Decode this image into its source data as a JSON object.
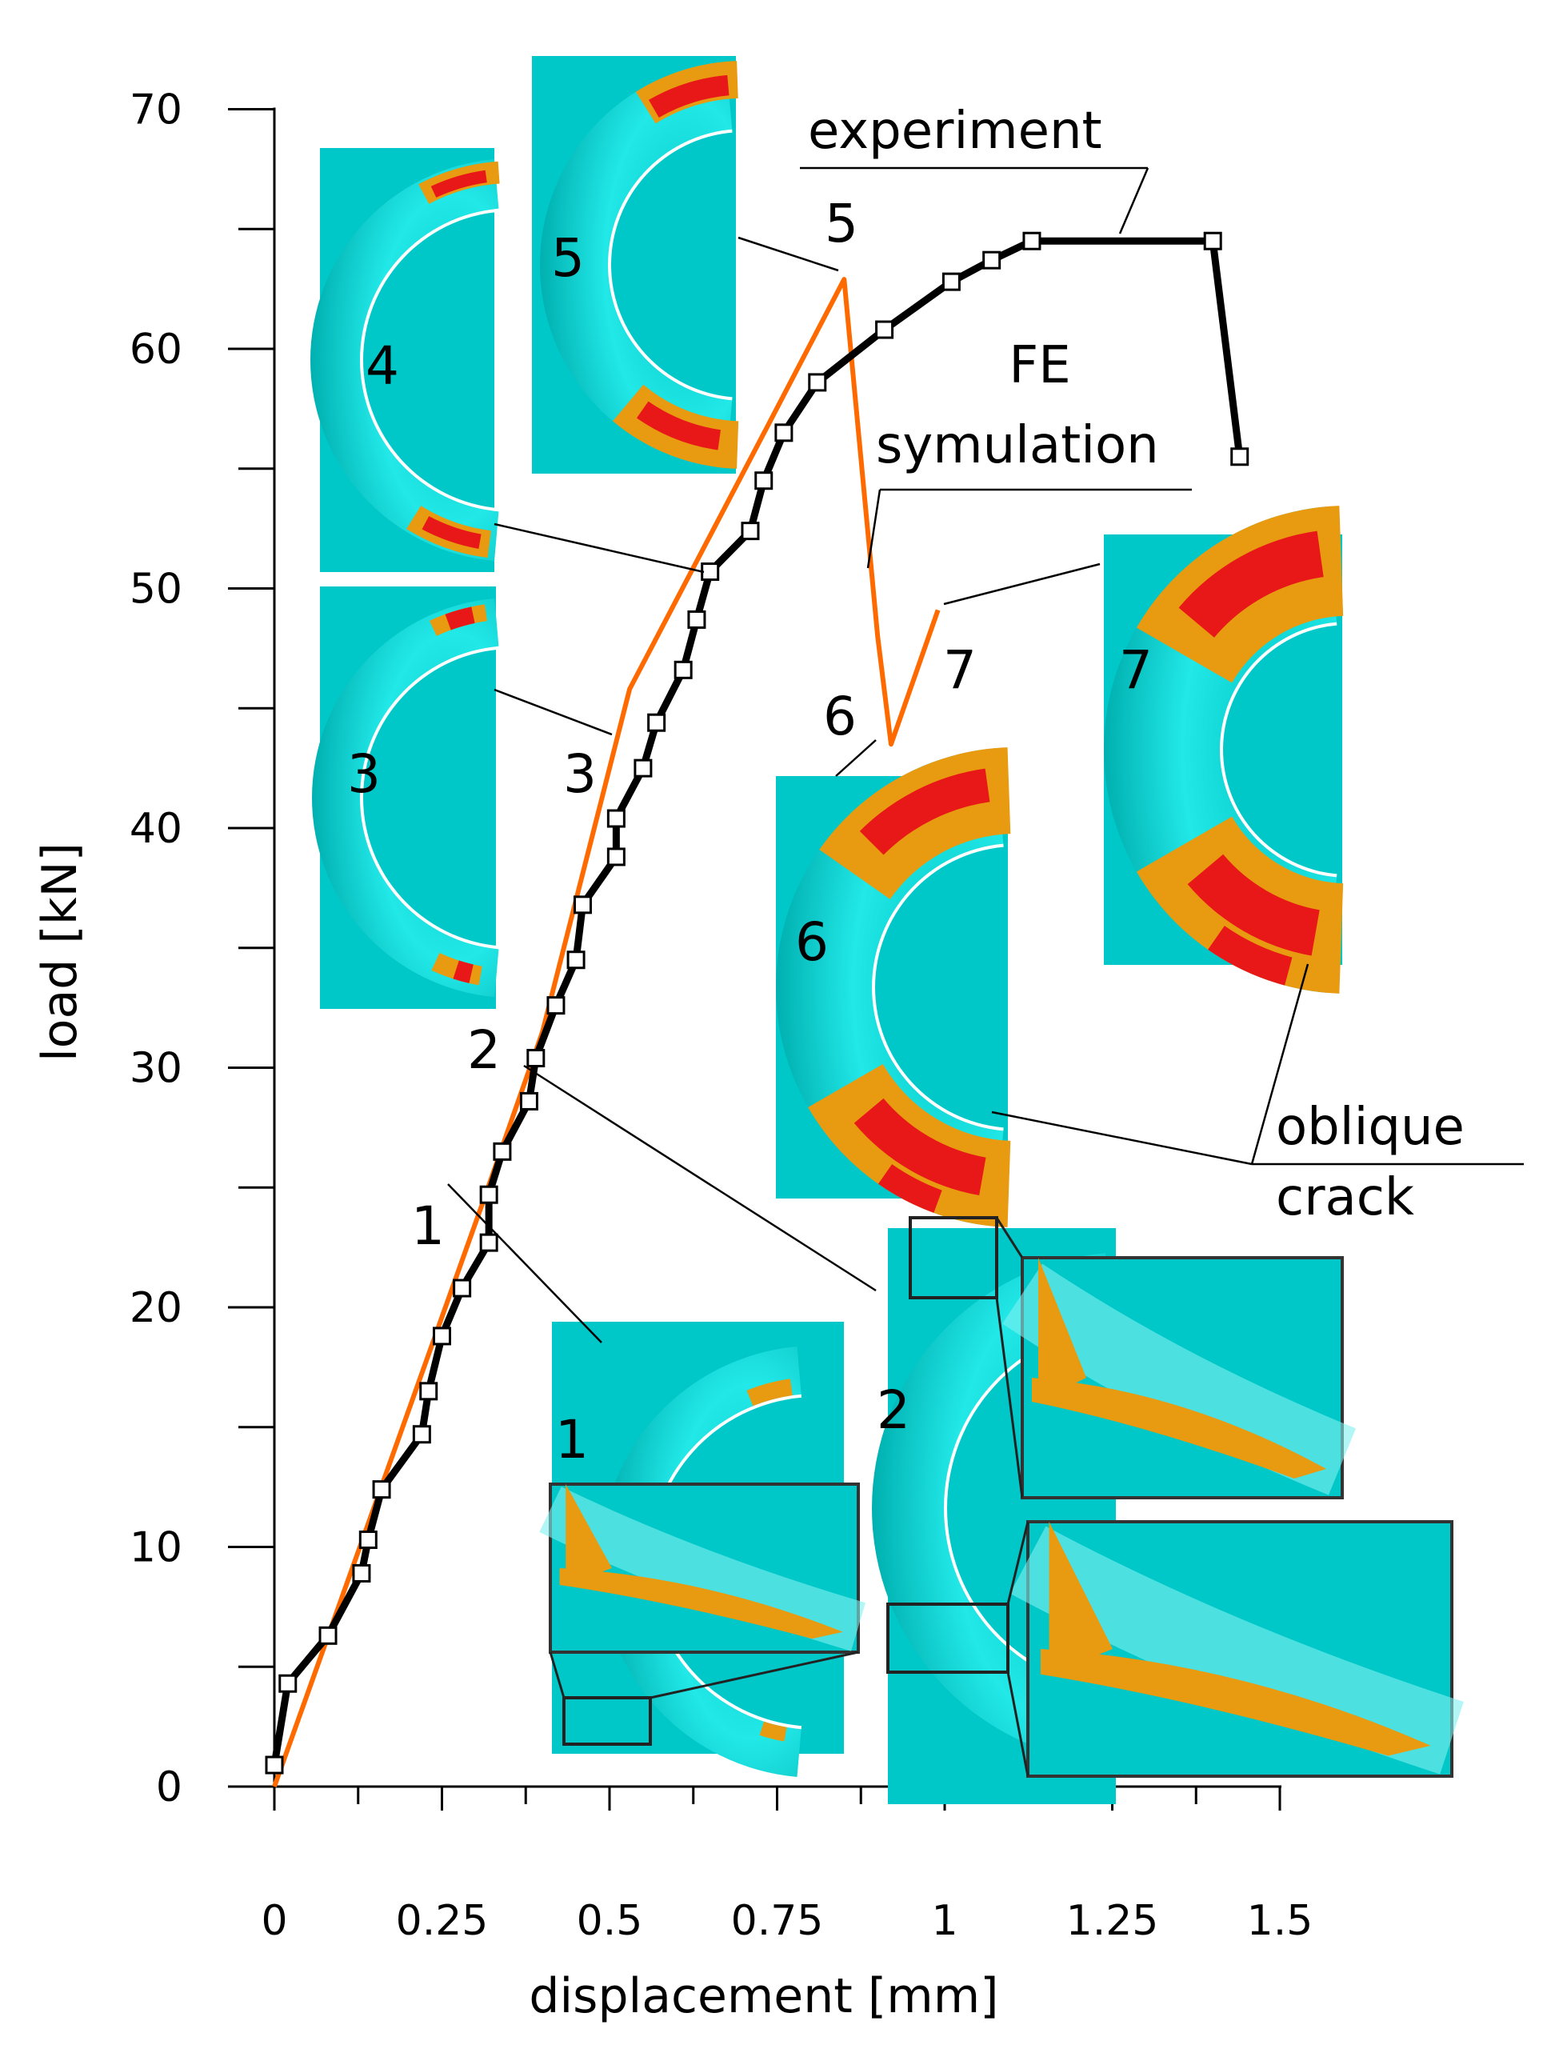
{
  "chart_data": {
    "type": "line",
    "title": "",
    "xlabel": "displacement    [mm]",
    "ylabel": "load   [kN]",
    "xlim": [
      0,
      1.5
    ],
    "ylim": [
      0,
      70
    ],
    "x_ticks": [
      "0",
      "0.25",
      "0.5",
      "0.75",
      "1",
      "1.25",
      "1.5"
    ],
    "y_ticks": [
      "0",
      "10",
      "20",
      "30",
      "40",
      "50",
      "60",
      "70"
    ],
    "grid": false,
    "series": [
      {
        "name": "experiment",
        "color": "#000000",
        "marker": "square",
        "points": [
          {
            "x": 0.0,
            "y": 0.9
          },
          {
            "x": 0.02,
            "y": 4.3
          },
          {
            "x": 0.08,
            "y": 6.3
          },
          {
            "x": 0.13,
            "y": 8.9
          },
          {
            "x": 0.14,
            "y": 10.3
          },
          {
            "x": 0.16,
            "y": 12.4
          },
          {
            "x": 0.22,
            "y": 14.7
          },
          {
            "x": 0.23,
            "y": 16.5
          },
          {
            "x": 0.25,
            "y": 18.8
          },
          {
            "x": 0.28,
            "y": 20.8
          },
          {
            "x": 0.32,
            "y": 22.7
          },
          {
            "x": 0.32,
            "y": 24.7
          },
          {
            "x": 0.34,
            "y": 26.5
          },
          {
            "x": 0.38,
            "y": 28.6
          },
          {
            "x": 0.39,
            "y": 30.4
          },
          {
            "x": 0.42,
            "y": 32.6
          },
          {
            "x": 0.45,
            "y": 34.5
          },
          {
            "x": 0.46,
            "y": 36.8
          },
          {
            "x": 0.51,
            "y": 38.8
          },
          {
            "x": 0.51,
            "y": 40.4
          },
          {
            "x": 0.55,
            "y": 42.5
          },
          {
            "x": 0.57,
            "y": 44.4
          },
          {
            "x": 0.61,
            "y": 46.6
          },
          {
            "x": 0.63,
            "y": 48.7
          },
          {
            "x": 0.65,
            "y": 50.7
          },
          {
            "x": 0.71,
            "y": 52.4
          },
          {
            "x": 0.73,
            "y": 54.5
          },
          {
            "x": 0.76,
            "y": 56.5
          },
          {
            "x": 0.81,
            "y": 58.6
          },
          {
            "x": 0.91,
            "y": 60.8
          },
          {
            "x": 1.01,
            "y": 62.8
          },
          {
            "x": 1.07,
            "y": 63.7
          },
          {
            "x": 1.13,
            "y": 64.5
          },
          {
            "x": 1.4,
            "y": 64.5
          },
          {
            "x": 1.44,
            "y": 55.5
          }
        ]
      },
      {
        "name": "FE symulation",
        "color": "#ff6a00",
        "marker": "none",
        "points": [
          {
            "x": 0.0,
            "y": 0.0
          },
          {
            "x": 0.31,
            "y": 24.3
          },
          {
            "x": 0.4,
            "y": 31.5
          },
          {
            "x": 0.53,
            "y": 45.8
          },
          {
            "x": 0.74,
            "y": 57.0
          },
          {
            "x": 0.85,
            "y": 62.9
          },
          {
            "x": 0.9,
            "y": 48.0
          },
          {
            "x": 0.92,
            "y": 43.5
          },
          {
            "x": 0.99,
            "y": 49.1
          }
        ]
      }
    ],
    "annotations": [
      {
        "text": "experiment",
        "target": "experiment curve"
      },
      {
        "text": "FE",
        "target": "FE curve"
      },
      {
        "text": "symulation",
        "target": "FE curve"
      },
      {
        "text": "oblique",
        "target": "snapshots 6 and 7"
      },
      {
        "text": "crack",
        "target": "snapshots 6 and 7"
      }
    ],
    "curve_point_labels": [
      {
        "label": "1",
        "x": 0.32,
        "y": 22.7
      },
      {
        "label": "2",
        "x": 0.39,
        "y": 30.4
      },
      {
        "label": "3",
        "x": 0.5,
        "y": 42.5
      },
      {
        "label": "4",
        "x": 0.62,
        "y": 50.7
      },
      {
        "label": "5",
        "x": 0.85,
        "y": 62.9
      },
      {
        "label": "6",
        "x": 0.92,
        "y": 43.5
      },
      {
        "label": "7",
        "x": 0.99,
        "y": 49.1
      }
    ],
    "snapshots": [
      {
        "label": "1",
        "callout": "crack onset detail"
      },
      {
        "label": "2",
        "callout": "crack onset detail"
      },
      {
        "label": "3"
      },
      {
        "label": "4"
      },
      {
        "label": "5"
      },
      {
        "label": "6"
      },
      {
        "label": "7"
      }
    ],
    "colors": {
      "part": "#00c8c8",
      "part_highlight": "#7ff0f0",
      "damage_orange": "#e89a10",
      "damage_red": "#e81818",
      "fe_line": "#ff6a00",
      "experiment_line": "#000000"
    }
  }
}
